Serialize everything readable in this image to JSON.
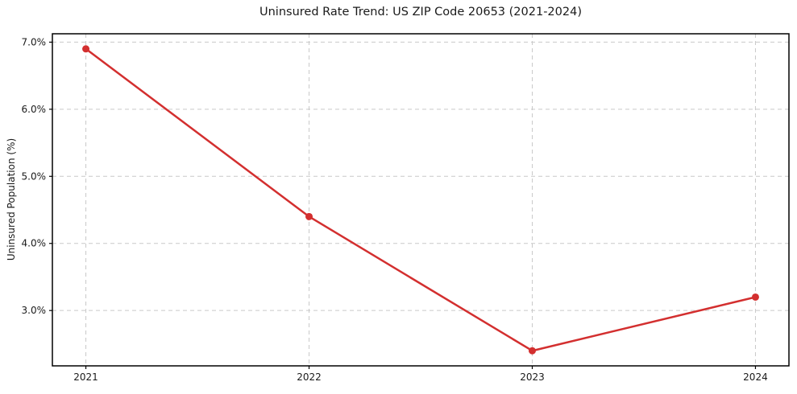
{
  "chart_data": {
    "type": "line",
    "title": "Uninsured Rate Trend: US ZIP Code 20653 (2021-2024)",
    "xlabel": "",
    "ylabel": "Uninsured Population (%)",
    "x": [
      2021,
      2022,
      2023,
      2024
    ],
    "series": [
      {
        "name": "Uninsured rate",
        "values": [
          6.9,
          4.4,
          2.4,
          3.2
        ]
      }
    ],
    "x_tick_labels": [
      "2021",
      "2022",
      "2023",
      "2024"
    ],
    "y_ticks": [
      3.0,
      4.0,
      5.0,
      6.0,
      7.0
    ],
    "y_tick_labels": [
      "3.0%",
      "4.0%",
      "5.0%",
      "6.0%",
      "7.0%"
    ],
    "xlim": [
      2020.85,
      2024.15
    ],
    "ylim": [
      2.175,
      7.125
    ],
    "grid": true,
    "grid_style": "dashed",
    "legend": "none",
    "colors": {
      "line": "#d32f2f",
      "marker": "#d32f2f",
      "grid": "#c9c9c9",
      "axis": "#000000",
      "text": "#1a1a1a",
      "background": "#ffffff"
    }
  }
}
